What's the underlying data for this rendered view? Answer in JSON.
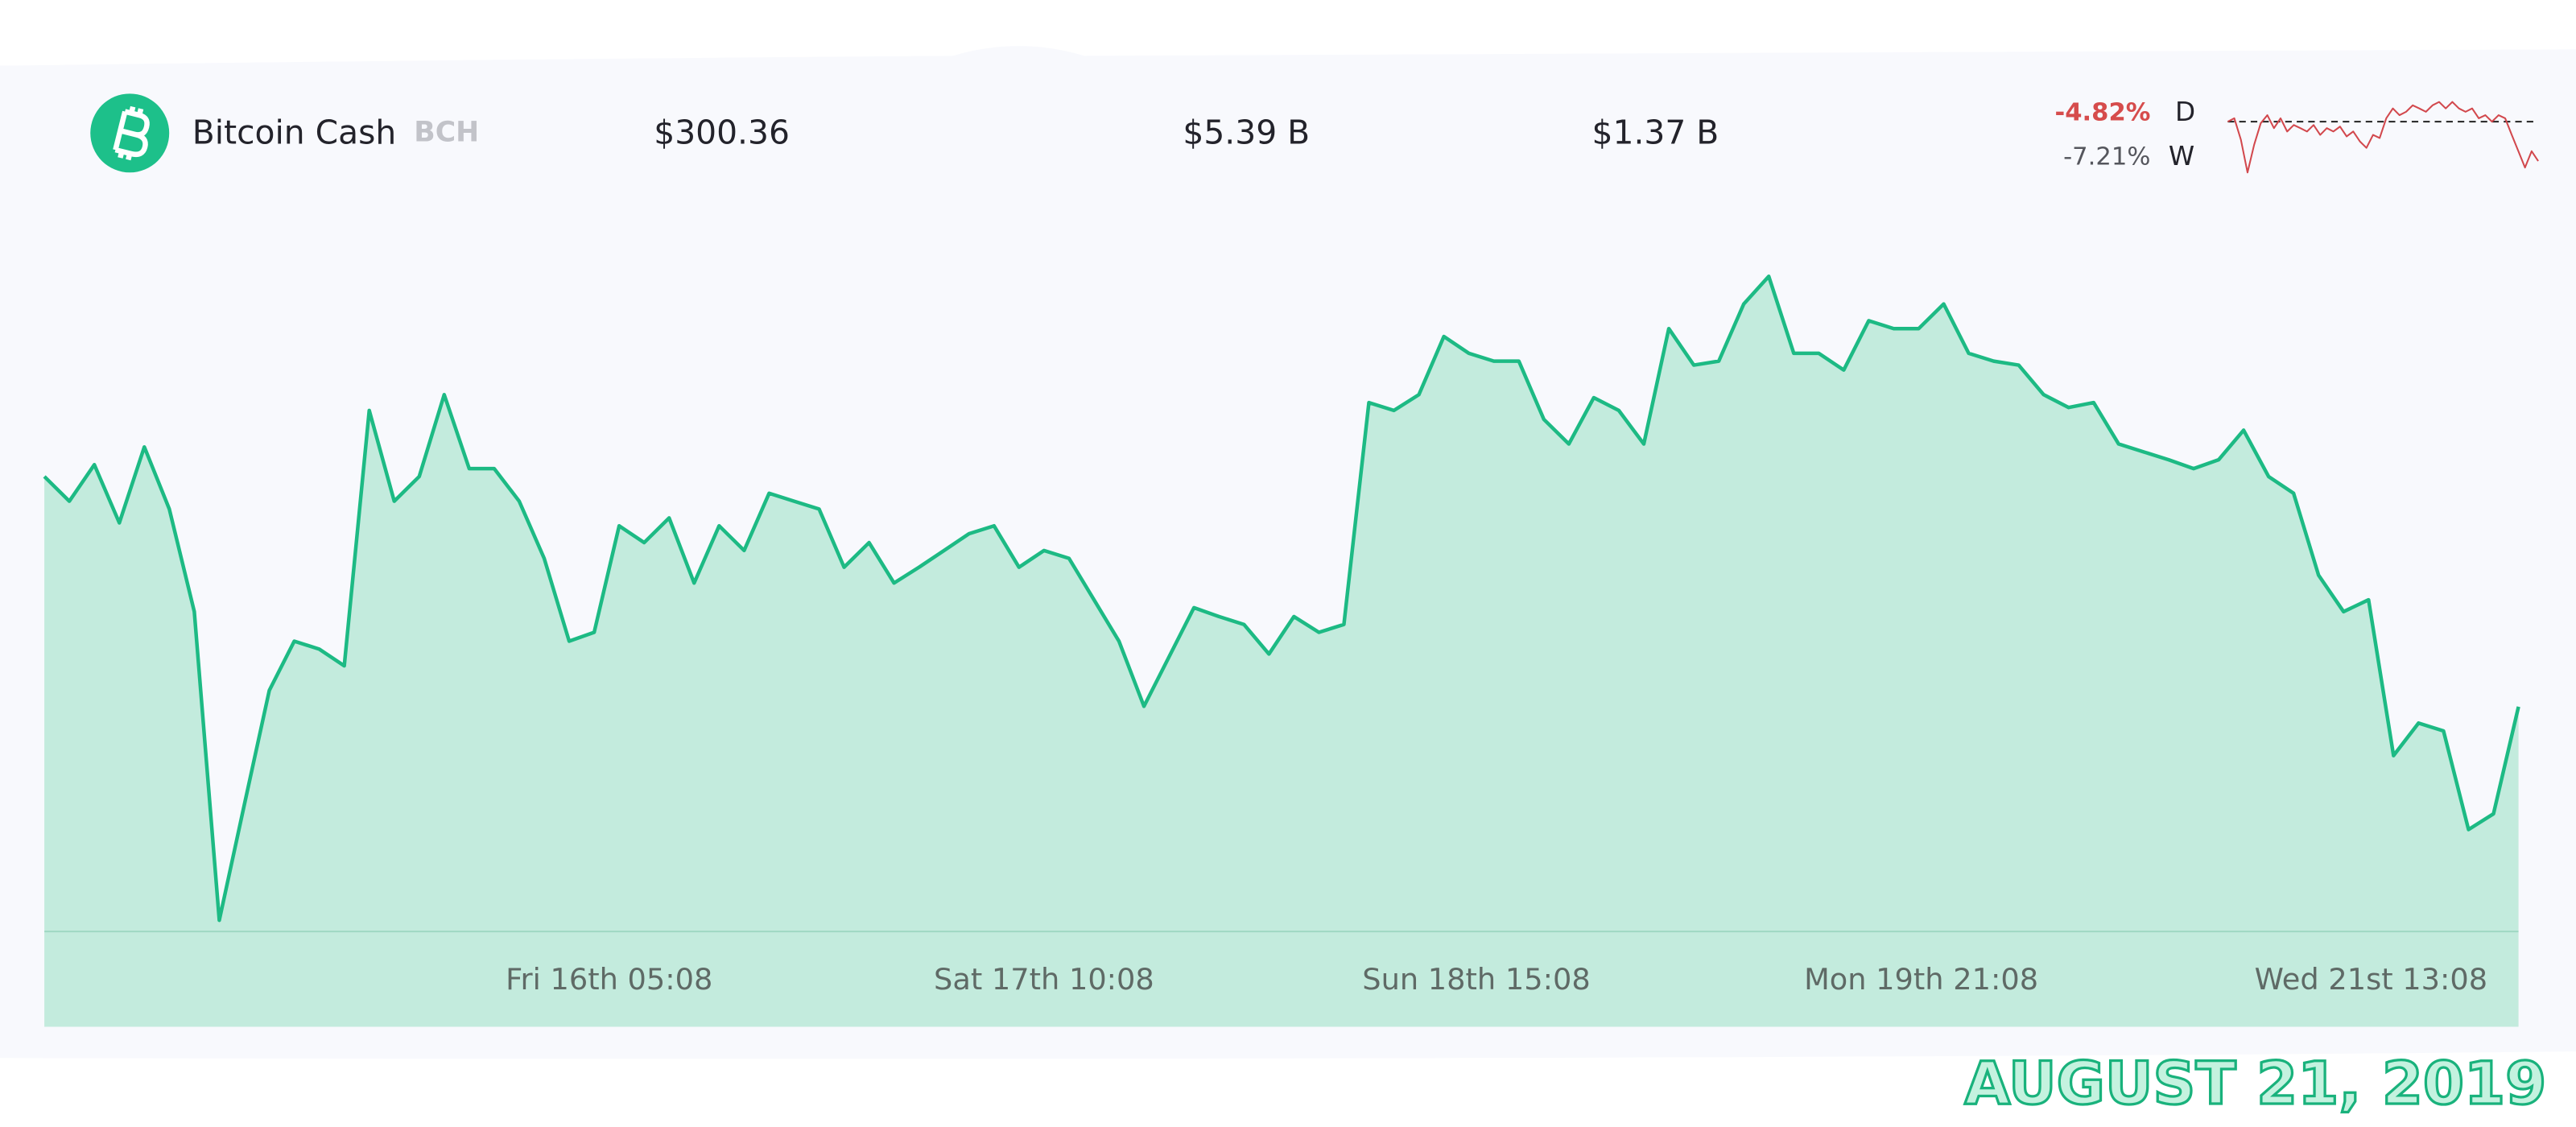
{
  "header": {
    "name": "Bitcoin Cash",
    "symbol": "BCH",
    "price": "$300.36",
    "market_cap": "$5.39 B",
    "volume": "$1.37 B",
    "change_day": "-4.82%",
    "day_label": "D",
    "change_week": "-7.21%",
    "week_label": "W"
  },
  "chart_data": [
    {
      "type": "area",
      "color": "#1dba84",
      "fill": "#c3ebdd",
      "values": [
        323.7,
        321.2,
        324.9,
        319.0,
        326.7,
        320.4,
        310.0,
        278.7,
        290.4,
        302.0,
        307.0,
        306.2,
        304.5,
        330.4,
        321.2,
        323.7,
        332.0,
        324.5,
        324.5,
        321.2,
        315.4,
        307.0,
        307.9,
        318.7,
        317.0,
        319.5,
        312.9,
        318.7,
        316.2,
        322.0,
        321.2,
        320.4,
        314.5,
        317.0,
        312.9,
        314.5,
        316.2,
        317.9,
        318.7,
        314.5,
        316.2,
        315.4,
        311.2,
        307.0,
        300.4,
        305.4,
        310.4,
        309.5,
        308.7,
        305.7,
        309.5,
        307.9,
        308.7,
        331.2,
        330.4,
        332.0,
        337.9,
        336.2,
        335.4,
        335.4,
        329.5,
        327.0,
        331.7,
        330.4,
        327.0,
        338.7,
        335.0,
        335.4,
        341.2,
        344.0,
        336.2,
        336.2,
        334.5,
        339.5,
        338.7,
        338.7,
        341.2,
        336.2,
        335.4,
        335.0,
        332.0,
        330.7,
        331.2,
        327.0,
        326.2,
        325.4,
        324.5,
        325.4,
        328.4,
        323.7,
        322.0,
        313.7,
        310.0,
        311.2,
        295.4,
        298.7,
        297.9,
        287.9,
        289.5,
        300.36
      ],
      "xlim": [
        0,
        99
      ],
      "ylim": [
        267.9,
        348.7
      ],
      "xticks": [
        {
          "value": 22.6,
          "label": "Fri 16th 05:08"
        },
        {
          "value": 40,
          "label": "Sat 17th 10:08"
        },
        {
          "value": 57.3,
          "label": "Sun 18th 15:08"
        },
        {
          "value": 75.1,
          "label": "Mon 19th 21:08"
        },
        {
          "value": 93.1,
          "label": "Wed 21st 13:08"
        }
      ]
    },
    {
      "type": "line",
      "color": "#d2484d",
      "values": [
        315.6,
        316.9,
        308.6,
        296.0,
        306.7,
        315.0,
        318.1,
        313.1,
        316.9,
        311.8,
        314.3,
        313.1,
        311.8,
        314.3,
        310.5,
        313.1,
        311.8,
        313.7,
        309.9,
        311.8,
        308.0,
        305.5,
        310.5,
        309.3,
        316.9,
        320.7,
        318.1,
        319.4,
        321.9,
        320.7,
        319.4,
        321.9,
        323.2,
        320.7,
        323.2,
        320.7,
        319.4,
        320.7,
        316.9,
        318.1,
        315.6,
        318.1,
        316.9,
        310.5,
        304.2,
        297.9,
        304.2,
        300.4
      ],
      "xlim": [
        0,
        47
      ],
      "ylim": [
        294.1,
        324.5
      ],
      "reference": 315.6
    }
  ],
  "footer": {
    "date": "AUGUST 21, 2019"
  }
}
